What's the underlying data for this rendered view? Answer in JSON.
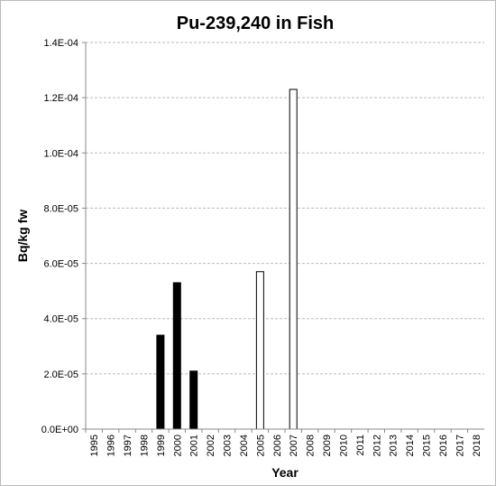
{
  "chart_data": {
    "type": "bar",
    "title": "Pu-239,240 in Fish",
    "x_label": "Year",
    "y_label": "Bq/kg fw",
    "categories": [
      "1995",
      "1996",
      "1997",
      "1998",
      "1999",
      "2000",
      "2001",
      "2002",
      "2003",
      "2004",
      "2005",
      "2006",
      "2007",
      "2008",
      "2009",
      "2010",
      "2011",
      "2012",
      "2013",
      "2014",
      "2015",
      "2016",
      "2017",
      "2018"
    ],
    "series": [
      {
        "color": "#000000",
        "values": [
          null,
          null,
          null,
          null,
          3.4e-05,
          5.3e-05,
          2.1e-05,
          null,
          null,
          null,
          null,
          null,
          null,
          null,
          null,
          null,
          null,
          null,
          null,
          null,
          null,
          null,
          null,
          null
        ]
      },
      {
        "color": "#ffffff",
        "values": [
          null,
          null,
          null,
          null,
          null,
          null,
          null,
          null,
          null,
          null,
          5.7e-05,
          null,
          0.000123,
          null,
          null,
          null,
          null,
          null,
          null,
          null,
          null,
          null,
          null,
          null
        ]
      }
    ],
    "ylim": [
      0,
      0.00014
    ],
    "yticks": [
      {
        "value": 0,
        "label": "0.0E+00"
      },
      {
        "value": 2e-05,
        "label": "2.0E-05"
      },
      {
        "value": 4e-05,
        "label": "4.0E-05"
      },
      {
        "value": 6e-05,
        "label": "6.0E-05"
      },
      {
        "value": 8e-05,
        "label": "8.0E-05"
      },
      {
        "value": 0.0001,
        "label": "1.0E-04"
      },
      {
        "value": 0.00012,
        "label": "1.2E-04"
      },
      {
        "value": 0.00014,
        "label": "1.4E-04"
      }
    ],
    "grid": true
  }
}
